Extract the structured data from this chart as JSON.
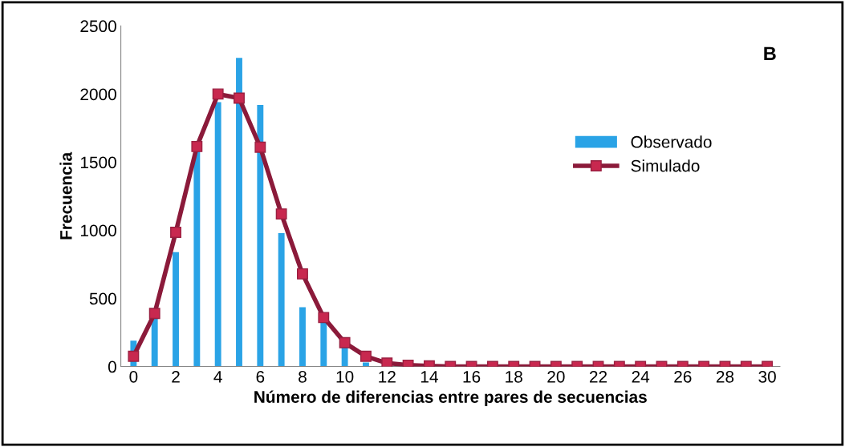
{
  "chart_data": {
    "type": "bar",
    "xlabel": "Número de diferencias entre pares de secuencias",
    "ylabel": "Frecuencia",
    "x": [
      0,
      1,
      2,
      3,
      4,
      5,
      6,
      7,
      8,
      9,
      10,
      11,
      12,
      13,
      14,
      15,
      16,
      17,
      18,
      19,
      20,
      21,
      22,
      23,
      24,
      25,
      26,
      27,
      28,
      29,
      30
    ],
    "series": [
      {
        "name": "Observado",
        "color": "#2aa3e6",
        "values": [
          190,
          350,
          840,
          1580,
          1940,
          2265,
          1920,
          980,
          435,
          330,
          140,
          30,
          0,
          0,
          0,
          0,
          0,
          0,
          0,
          0,
          0,
          0,
          0,
          0,
          0,
          0,
          0,
          0,
          0,
          0,
          0
        ]
      },
      {
        "name": "Simulado",
        "type": "line",
        "color": "#8b1a3a",
        "marker": "square",
        "line_style": "solid",
        "values": [
          75,
          390,
          985,
          1615,
          2000,
          1970,
          1610,
          1120,
          680,
          360,
          175,
          75,
          25,
          10,
          5,
          0,
          0,
          0,
          0,
          0,
          0,
          0,
          0,
          0,
          0,
          0,
          0,
          0,
          0,
          0,
          0
        ]
      }
    ],
    "xlim": [
      -0.6,
      30.6
    ],
    "xticks": [
      0,
      2,
      4,
      6,
      8,
      10,
      12,
      14,
      16,
      18,
      20,
      22,
      24,
      26,
      28,
      30
    ],
    "ylim": [
      0,
      2500
    ],
    "yticks": [
      0,
      500,
      1000,
      1500,
      2000,
      2500
    ],
    "grid": false,
    "legend": "right",
    "annotations": [
      "B"
    ]
  }
}
